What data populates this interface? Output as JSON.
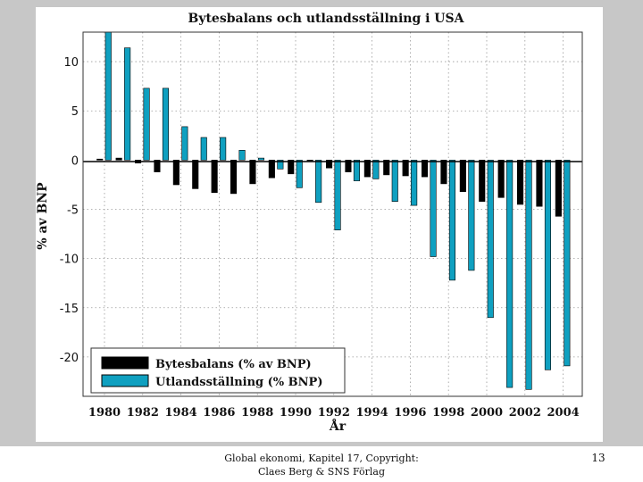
{
  "chart_data": {
    "type": "bar",
    "title": "Bytesbalans och utlandsställning i USA",
    "xlabel": "År",
    "ylabel": "% av BNP",
    "ylim": [
      -24,
      13
    ],
    "yticks": [
      10,
      5,
      0,
      -5,
      -10,
      -15,
      -20
    ],
    "categories": [
      "1980",
      "1981",
      "1982",
      "1983",
      "1984",
      "1985",
      "1986",
      "1987",
      "1988",
      "1989",
      "1990",
      "1991",
      "1992",
      "1993",
      "1994",
      "1995",
      "1996",
      "1997",
      "1998",
      "1999",
      "2000",
      "2001",
      "2002",
      "2003",
      "2004"
    ],
    "xtick_labels": [
      "1980",
      "1982",
      "1984",
      "1986",
      "1988",
      "1990",
      "1992",
      "1994",
      "1996",
      "1998",
      "2000",
      "2002",
      "2004"
    ],
    "grid": true,
    "legend_position": "bottom-left",
    "series": [
      {
        "name": "Bytesbalans (% av BNP)",
        "color": "#000000",
        "values": [
          0.1,
          0.2,
          -0.3,
          -1.2,
          -2.5,
          -2.9,
          -3.3,
          -3.4,
          -2.4,
          -1.8,
          -1.4,
          0.0,
          -0.8,
          -1.2,
          -1.7,
          -1.5,
          -1.6,
          -1.7,
          -2.4,
          -3.2,
          -4.2,
          -3.8,
          -4.5,
          -4.7,
          -5.7
        ]
      },
      {
        "name": "Utlandsställning (% BNP)",
        "color": "#0fa0c0",
        "values": [
          13.0,
          11.4,
          7.3,
          7.3,
          3.4,
          2.3,
          2.3,
          1.0,
          0.2,
          -0.9,
          -2.8,
          -4.3,
          -7.1,
          -2.1,
          -1.9,
          -4.2,
          -4.6,
          -9.8,
          -12.2,
          -11.2,
          -16.0,
          -23.1,
          -23.3,
          -21.3,
          -20.9
        ]
      }
    ]
  },
  "footer": {
    "line1": "Global ekonomi, Kapitel 17, Copyright:",
    "line2": "Claes Berg & SNS Förlag",
    "page_number": "13"
  }
}
